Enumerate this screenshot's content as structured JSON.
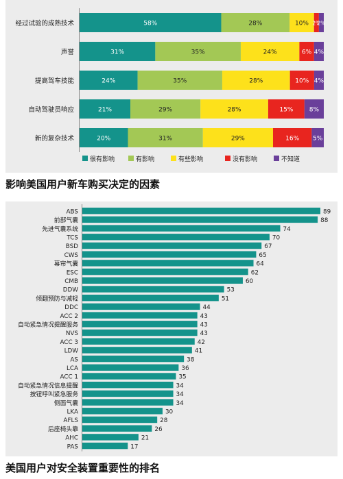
{
  "chart_data": [
    {
      "type": "bar",
      "orientation": "horizontal",
      "stacked": true,
      "percent": true,
      "title": "影响美国用户新车购买决定的因素",
      "categories": [
        "经过试验的成熟技术",
        "声誉",
        "提高驾车技能",
        "自动驾驶员响应",
        "新的复杂技术"
      ],
      "series": [
        {
          "name": "很有影响",
          "color": "#14938b",
          "values": [
            58,
            31,
            24,
            21,
            20
          ],
          "labels": [
            "58%",
            "31%",
            "24%",
            "21%",
            "20%"
          ]
        },
        {
          "name": "有影响",
          "color": "#a3c855",
          "values": [
            28,
            35,
            35,
            29,
            31
          ],
          "labels": [
            "28%",
            "35%",
            "35%",
            "29%",
            "31%"
          ]
        },
        {
          "name": "有些影响",
          "color": "#fde11b",
          "values": [
            10,
            24,
            28,
            28,
            29
          ],
          "labels": [
            "10%",
            "24%",
            "28%",
            "28%",
            "29%"
          ]
        },
        {
          "name": "没有影响",
          "color": "#e8251f",
          "values": [
            2,
            6,
            10,
            15,
            16
          ],
          "labels": [
            "2%",
            "6%",
            "10%",
            "15%",
            "16%"
          ]
        },
        {
          "name": "不知道",
          "color": "#6a3f9a",
          "values": [
            2,
            4,
            4,
            8,
            5
          ],
          "labels": [
            "2%",
            "4%",
            "4%",
            "8%",
            "5%"
          ]
        }
      ],
      "legend_position": "bottom"
    },
    {
      "type": "bar",
      "orientation": "horizontal",
      "title": "美国用户对安全装置重要性的排名",
      "color": "#14938b",
      "categories": [
        "ABS",
        "前部气囊",
        "先进气囊系统",
        "TCS",
        "BSD",
        "CWS",
        "幕帘气囊",
        "ESC",
        "CMB",
        "DDW",
        "倾翻预防与减轻",
        "DDC",
        "ACC 2",
        "自动紧急情况提醒服务",
        "NVS",
        "ACC 3",
        "LDW",
        "AS",
        "LCA",
        "ACC 1",
        "自动紧急情况信息提醒",
        "按钮呼叫紧急服务",
        "侧面气囊",
        "LKA",
        "AFLS",
        "后座椅头靠",
        "AHC",
        "PAS"
      ],
      "values": [
        89,
        88,
        74,
        70,
        67,
        65,
        64,
        62,
        60,
        53,
        51,
        44,
        43,
        43,
        43,
        42,
        41,
        38,
        36,
        35,
        34,
        34,
        34,
        30,
        28,
        26,
        21,
        17
      ],
      "labels": [
        "89",
        "88",
        "74",
        "70",
        "67",
        "65",
        "64",
        "62",
        "60",
        "53",
        "51",
        "44",
        "43",
        "43",
        "43",
        "42",
        "41",
        "38",
        "36",
        "35",
        "34",
        "34",
        "34",
        "30",
        "28",
        "26",
        "21",
        "17"
      ],
      "xlim": [
        0,
        89
      ]
    }
  ]
}
